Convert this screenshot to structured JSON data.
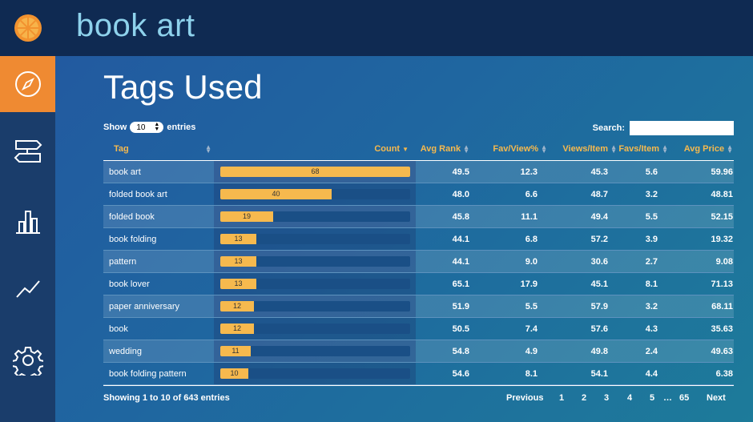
{
  "header": {
    "title": "book art"
  },
  "sidebar": {
    "items": [
      {
        "icon": "compass-icon",
        "active": true
      },
      {
        "icon": "signpost-icon",
        "active": false
      },
      {
        "icon": "bar-chart-icon",
        "active": false
      },
      {
        "icon": "trend-line-icon",
        "active": false
      },
      {
        "icon": "gear-icon",
        "active": false
      }
    ]
  },
  "main": {
    "title": "Tags Used",
    "show_label": "Show",
    "entries_label": "entries",
    "length_value": "10",
    "search_label": "Search:"
  },
  "table": {
    "columns": {
      "tag": "Tag",
      "count": "Count",
      "avg_rank": "Avg Rank",
      "fav_view": "Fav/View%",
      "views_item": "Views/Item",
      "favs_item": "Favs/Item",
      "avg_price": "Avg Price"
    },
    "max_count": 68,
    "rows": [
      {
        "tag": "book art",
        "count": 68,
        "avg_rank": "49.5",
        "fav_view": "12.3",
        "views_item": "45.3",
        "favs_item": "5.6",
        "avg_price": "59.96"
      },
      {
        "tag": "folded book art",
        "count": 40,
        "avg_rank": "48.0",
        "fav_view": "6.6",
        "views_item": "48.7",
        "favs_item": "3.2",
        "avg_price": "48.81"
      },
      {
        "tag": "folded book",
        "count": 19,
        "avg_rank": "45.8",
        "fav_view": "11.1",
        "views_item": "49.4",
        "favs_item": "5.5",
        "avg_price": "52.15"
      },
      {
        "tag": "book folding",
        "count": 13,
        "avg_rank": "44.1",
        "fav_view": "6.8",
        "views_item": "57.2",
        "favs_item": "3.9",
        "avg_price": "19.32"
      },
      {
        "tag": "pattern",
        "count": 13,
        "avg_rank": "44.1",
        "fav_view": "9.0",
        "views_item": "30.6",
        "favs_item": "2.7",
        "avg_price": "9.08"
      },
      {
        "tag": "book lover",
        "count": 13,
        "avg_rank": "65.1",
        "fav_view": "17.9",
        "views_item": "45.1",
        "favs_item": "8.1",
        "avg_price": "71.13"
      },
      {
        "tag": "paper anniversary",
        "count": 12,
        "avg_rank": "51.9",
        "fav_view": "5.5",
        "views_item": "57.9",
        "favs_item": "3.2",
        "avg_price": "68.11"
      },
      {
        "tag": "book",
        "count": 12,
        "avg_rank": "50.5",
        "fav_view": "7.4",
        "views_item": "57.6",
        "favs_item": "4.3",
        "avg_price": "35.63"
      },
      {
        "tag": "wedding",
        "count": 11,
        "avg_rank": "54.8",
        "fav_view": "4.9",
        "views_item": "49.8",
        "favs_item": "2.4",
        "avg_price": "49.63"
      },
      {
        "tag": "book folding pattern",
        "count": 10,
        "avg_rank": "54.6",
        "fav_view": "8.1",
        "views_item": "54.1",
        "favs_item": "4.4",
        "avg_price": "6.38"
      }
    ]
  },
  "footer": {
    "info": "Showing 1 to 10 of 643 entries",
    "previous": "Previous",
    "pages": [
      "1",
      "2",
      "3",
      "4",
      "5"
    ],
    "ellipsis": "…",
    "last_page": "65",
    "next": "Next"
  },
  "colors": {
    "accent": "#ef8a32",
    "header_bg": "#0f2a52",
    "bar_fill": "#f6b94e",
    "title_text": "#8ed2ec"
  }
}
